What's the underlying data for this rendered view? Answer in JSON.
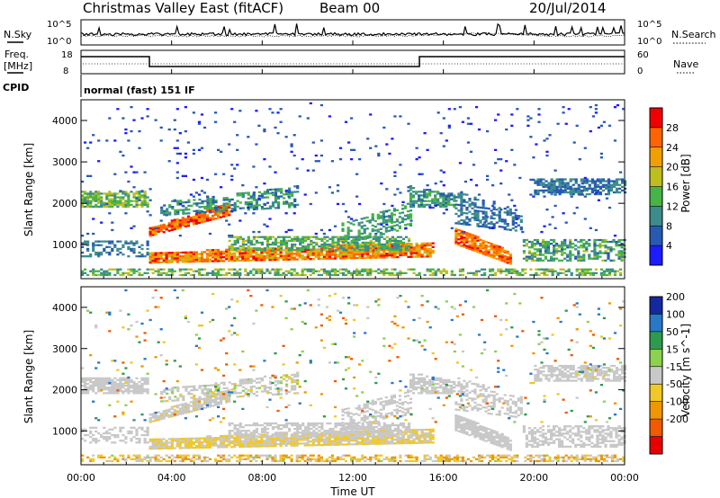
{
  "header": {
    "title": "Christmas Valley East (fitACF)",
    "beam": "Beam 00",
    "date": "20/Jul/2014"
  },
  "panels": {
    "noise": {
      "left_label": "N.Sky",
      "right_label": "N.Search",
      "left_ticks": [
        "10^5",
        "10^0"
      ],
      "right_ticks": [
        "10^5",
        "10^0"
      ]
    },
    "freq": {
      "left_label": "Freq.",
      "left_unit": "[MHz]",
      "right_label": "Nave",
      "left_ticks": [
        "18",
        "8"
      ],
      "right_ticks": [
        "60",
        "0"
      ]
    },
    "cpid": {
      "label": "CPID",
      "mode": "normal (fast) 151 IF"
    }
  },
  "chart_data": [
    {
      "type": "heatmap",
      "name": "power",
      "ylabel": "Slant Range [km]",
      "ylim": [
        180,
        4500
      ],
      "yticks": [
        1000,
        2000,
        3000,
        4000
      ],
      "colorbar": {
        "label": "Power [dB]",
        "ticks": [
          "4",
          "8",
          "12",
          "16",
          "20",
          "24",
          "28"
        ],
        "colors": [
          "#1c1cff",
          "#285ab4",
          "#3c8c8c",
          "#46b446",
          "#bebe1e",
          "#f0a000",
          "#ff6400",
          "#f00000"
        ]
      }
    },
    {
      "type": "heatmap",
      "name": "velocity",
      "ylabel": "Slant Range [km]",
      "ylim": [
        180,
        4500
      ],
      "yticks": [
        1000,
        2000,
        3000,
        4000
      ],
      "colorbar": {
        "label": "Velocity [m s^-1]",
        "ticks": [
          "200",
          "100",
          "50",
          "15",
          "-15",
          "-50",
          "-100",
          "-200"
        ],
        "colors": [
          "#1428a0",
          "#2878c8",
          "#2e9a50",
          "#8cd250",
          "#c8c8c8",
          "#f0c828",
          "#f09600",
          "#f05a00",
          "#e60000"
        ]
      }
    }
  ],
  "x_axis": {
    "label": "Time UT",
    "ticks": [
      "00:00",
      "04:00",
      "08:00",
      "12:00",
      "16:00",
      "20:00",
      "00:00"
    ]
  }
}
